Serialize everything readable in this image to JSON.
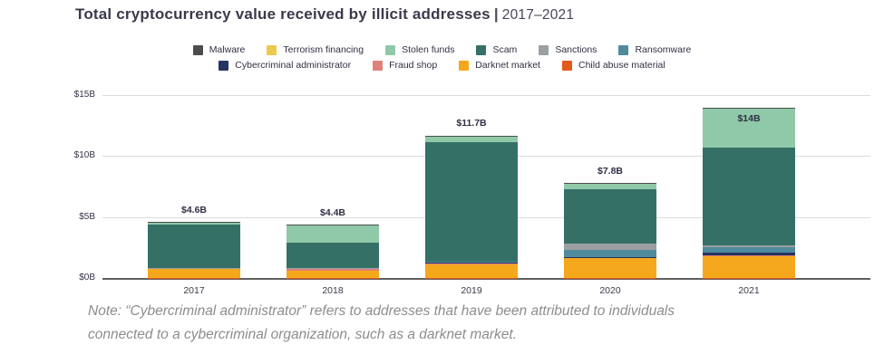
{
  "title": {
    "main": "Total cryptocurrency value received by illicit addresses",
    "separator": "|",
    "period": "2017–2021"
  },
  "legend": {
    "row1": [
      {
        "label": "Malware",
        "color": "#4d4d4d"
      },
      {
        "label": "Terrorism financing",
        "color": "#ecc94f"
      },
      {
        "label": "Stolen funds",
        "color": "#8fc9a9"
      },
      {
        "label": "Scam",
        "color": "#347066"
      },
      {
        "label": "Sanctions",
        "color": "#9b9fa2"
      },
      {
        "label": "Ransomware",
        "color": "#4f8b9d"
      }
    ],
    "row2": [
      {
        "label": "Cybercriminal administrator",
        "color": "#253461"
      },
      {
        "label": "Fraud shop",
        "color": "#e08179"
      },
      {
        "label": "Darknet market",
        "color": "#f5a81c"
      },
      {
        "label": "Child abuse material",
        "color": "#e2591a"
      }
    ]
  },
  "chart_data": {
    "type": "bar",
    "stacked": true,
    "title": "Total cryptocurrency value received by illicit addresses | 2017–2021",
    "categories": [
      "2017",
      "2018",
      "2019",
      "2020",
      "2021"
    ],
    "unit": "USD billions",
    "ylim": [
      0,
      15
    ],
    "y_ticks": [
      {
        "label": "$0B",
        "value": 0
      },
      {
        "label": "$5B",
        "value": 5
      },
      {
        "label": "$10B",
        "value": 10
      },
      {
        "label": "$15B",
        "value": 15
      }
    ],
    "totals": [
      4.6,
      4.4,
      11.7,
      7.8,
      14
    ],
    "total_labels": [
      "$4.6B",
      "$4.4B",
      "$11.7B",
      "$7.8B",
      "$14B"
    ],
    "total_label_placement": [
      "above",
      "above",
      "above",
      "above",
      "inside"
    ],
    "series": [
      {
        "name": "Child abuse material",
        "color": "#e2591a",
        "values": [
          0.01,
          0.01,
          0.01,
          0.01,
          0.01
        ]
      },
      {
        "name": "Darknet market",
        "color": "#f5a81c",
        "values": [
          0.7,
          0.6,
          1.1,
          1.6,
          1.8
        ]
      },
      {
        "name": "Fraud shop",
        "color": "#e08179",
        "values": [
          0.02,
          0.1,
          0.1,
          0.04,
          0.06
        ]
      },
      {
        "name": "Cybercriminal administrator",
        "color": "#253461",
        "values": [
          0.0,
          0.02,
          0.02,
          0.05,
          0.2
        ]
      },
      {
        "name": "Ransomware",
        "color": "#4f8b9d",
        "values": [
          0.05,
          0.05,
          0.09,
          0.6,
          0.45
        ]
      },
      {
        "name": "Sanctions",
        "color": "#9b9fa2",
        "values": [
          0.01,
          0.01,
          0.03,
          0.5,
          0.15
        ]
      },
      {
        "name": "Scam",
        "color": "#347066",
        "values": [
          3.6,
          2.1,
          9.8,
          4.5,
          8.0
        ]
      },
      {
        "name": "Stolen funds",
        "color": "#8fc9a9",
        "values": [
          0.15,
          1.4,
          0.45,
          0.4,
          3.2
        ]
      },
      {
        "name": "Terrorism financing",
        "color": "#ecc94f",
        "values": [
          0.01,
          0.02,
          0.02,
          0.02,
          0.02
        ]
      },
      {
        "name": "Malware",
        "color": "#4d4d4d",
        "values": [
          0.05,
          0.1,
          0.08,
          0.08,
          0.11
        ]
      }
    ],
    "legend_position": "top",
    "grid": true
  },
  "note": {
    "line1": "Note: “Cybercriminal administrator” refers to addresses that have been attributed to individuals",
    "line2": "connected to a cybercriminal organization, such as a darknet market."
  }
}
